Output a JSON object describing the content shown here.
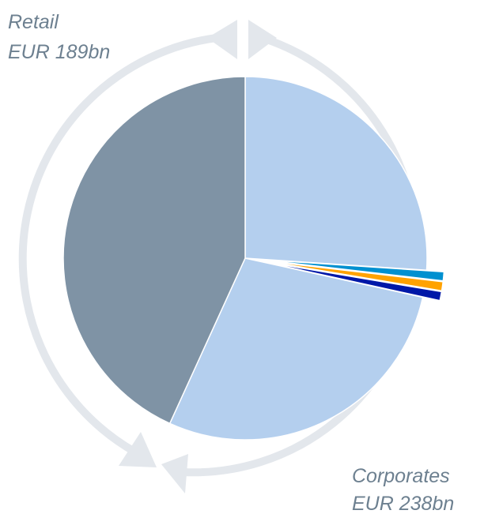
{
  "chart_data": {
    "type": "pie",
    "values": [
      114,
      3.5,
      3.5,
      3.5,
      124,
      189
    ],
    "colors": [
      "#b4cfee",
      "#0090d0",
      "#ffa200",
      "#0018a8",
      "#b4cfee",
      "#7f93a5"
    ],
    "exploded": [
      false,
      true,
      true,
      true,
      false,
      false
    ],
    "start_angle": 0,
    "direction": "clockwise",
    "annotations": [
      "Retail",
      "EUR 189bn",
      "Corporates",
      "EUR 238bn"
    ]
  }
}
